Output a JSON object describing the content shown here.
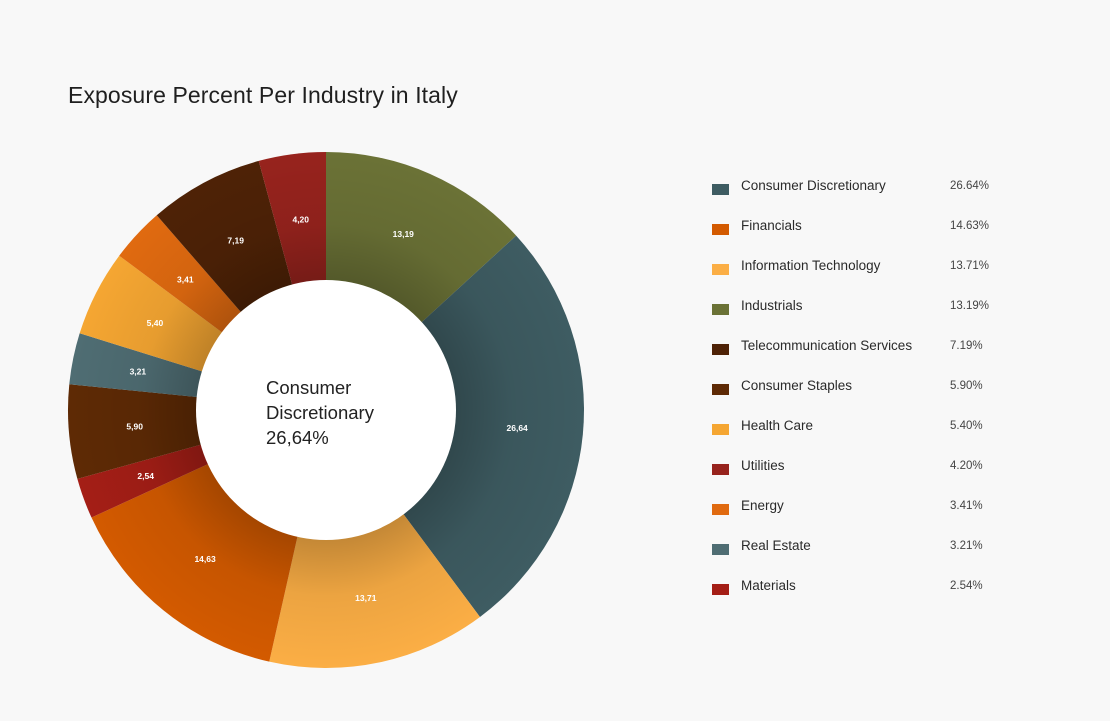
{
  "title": "Exposure Percent Per Industry in Italy",
  "center": {
    "line1": "Consumer",
    "line2": "Discretionary",
    "line3": "26,64%"
  },
  "legend": [
    {
      "name": "Consumer Discretionary",
      "value": "26.64%",
      "color": "#3e5c62"
    },
    {
      "name": "Financials",
      "value": "14.63%",
      "color": "#d35a00"
    },
    {
      "name": "Information Technology",
      "value": "13.71%",
      "color": "#fbae45"
    },
    {
      "name": "Industrials",
      "value": "13.19%",
      "color": "#6b7236"
    },
    {
      "name": "Telecommunication Services",
      "value": "7.19%",
      "color": "#4e2206"
    },
    {
      "name": "Consumer Staples",
      "value": "5.90%",
      "color": "#5e2a05"
    },
    {
      "name": "Health Care",
      "value": "5.40%",
      "color": "#f5a632"
    },
    {
      "name": "Utilities",
      "value": "4.20%",
      "color": "#97231d"
    },
    {
      "name": "Energy",
      "value": "3.41%",
      "color": "#e06a10"
    },
    {
      "name": "Real Estate",
      "value": "3.21%",
      "color": "#4f6d73"
    },
    {
      "name": "Materials",
      "value": "2.54%",
      "color": "#a41e16"
    }
  ],
  "chart_data": {
    "type": "pie",
    "title": "Exposure Percent Per Industry in Italy",
    "unit": "%",
    "slices": [
      {
        "name": "Industrials",
        "value": 13.19,
        "label": "13,19",
        "color": "#6b7236"
      },
      {
        "name": "Consumer Discretionary",
        "value": 26.64,
        "label": "26,64",
        "color": "#3e5c62"
      },
      {
        "name": "Information Technology",
        "value": 13.71,
        "label": "13,71",
        "color": "#fbae45"
      },
      {
        "name": "Financials",
        "value": 14.63,
        "label": "14,63",
        "color": "#d35a00"
      },
      {
        "name": "Materials",
        "value": 2.54,
        "label": "2,54",
        "color": "#a41e16"
      },
      {
        "name": "Consumer Staples",
        "value": 5.9,
        "label": "5,90",
        "color": "#5e2a05"
      },
      {
        "name": "Real Estate",
        "value": 3.21,
        "label": "3,21",
        "color": "#4f6d73"
      },
      {
        "name": "Health Care",
        "value": 5.4,
        "label": "5,40",
        "color": "#f5a632"
      },
      {
        "name": "Energy",
        "value": 3.41,
        "label": "3,41",
        "color": "#e06a10"
      },
      {
        "name": "Telecommunication Services",
        "value": 7.19,
        "label": "7,19",
        "color": "#4e2206"
      },
      {
        "name": "Utilities",
        "value": 4.2,
        "label": "4,20",
        "color": "#97231d"
      }
    ],
    "legend_placement": "right"
  }
}
